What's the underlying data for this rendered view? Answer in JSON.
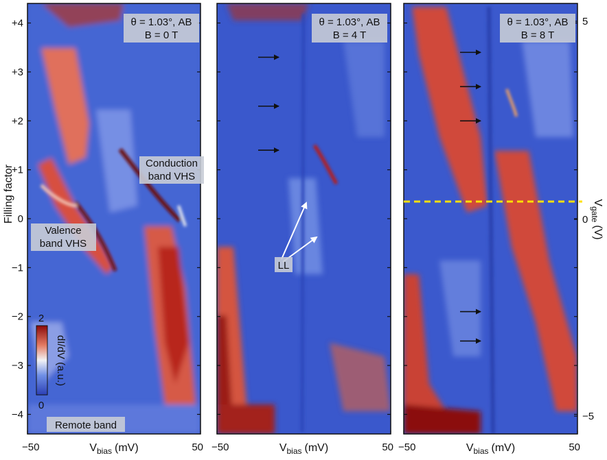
{
  "chart_data": {
    "type": "heatmap",
    "y_left_label": "Filling factor",
    "y_left_ticks": [
      "+4",
      "+3",
      "+2",
      "+1",
      "0",
      "−1",
      "−2",
      "−3",
      "−4"
    ],
    "y_left_values": [
      4,
      3,
      2,
      1,
      0,
      -1,
      -2,
      -3,
      -4
    ],
    "y_right_label": "V",
    "y_right_label_sub": "gate",
    "y_right_label_unit": "(V)",
    "y_right_ticks": [
      "5",
      "0",
      "−5"
    ],
    "y_right_values": [
      5,
      0,
      -5
    ],
    "x_label": "V",
    "x_label_sub": "bias",
    "x_label_unit": "(mV)",
    "x_ticks": [
      "−50",
      "50"
    ],
    "x_values": [
      -50,
      50
    ],
    "xlim": [
      -50,
      50
    ],
    "ylim": [
      -4.4,
      4.4
    ],
    "colorbar": {
      "label": "dI/dV (a.u.)",
      "max_label": "2",
      "min_label": "0",
      "range": [
        0,
        2
      ],
      "colors": [
        "#2b3fb5",
        "#6f8fe6",
        "#f2f2f5",
        "#e37a62",
        "#8b0a0a"
      ]
    },
    "panels": [
      {
        "theta_line": "θ = 1.03°, AB",
        "field_line": "B = 0 T",
        "field_T": 0,
        "annotations": [
          "Conduction band VHS",
          "Valence band VHS",
          "Remote band"
        ],
        "annotation_lines": [
          [
            "Conduction",
            "band VHS"
          ],
          [
            "Valence",
            "band VHS"
          ],
          [
            "Remote band"
          ]
        ]
      },
      {
        "theta_line": "θ = 1.03°, AB",
        "field_line": "B = 4 T",
        "field_T": 4,
        "annotations": [
          "LL"
        ],
        "arrow_filling_factors": [
          3.3,
          2.3,
          1.4
        ]
      },
      {
        "theta_line": "θ = 1.03°, AB",
        "field_line": "B = 8 T",
        "field_T": 8,
        "arrow_filling_factors": [
          3.4,
          2.7,
          2.0,
          -1.9,
          -2.5
        ],
        "dashed_line_filling_factor": 0.35,
        "dashed_line_color": "#ffe100"
      }
    ]
  }
}
